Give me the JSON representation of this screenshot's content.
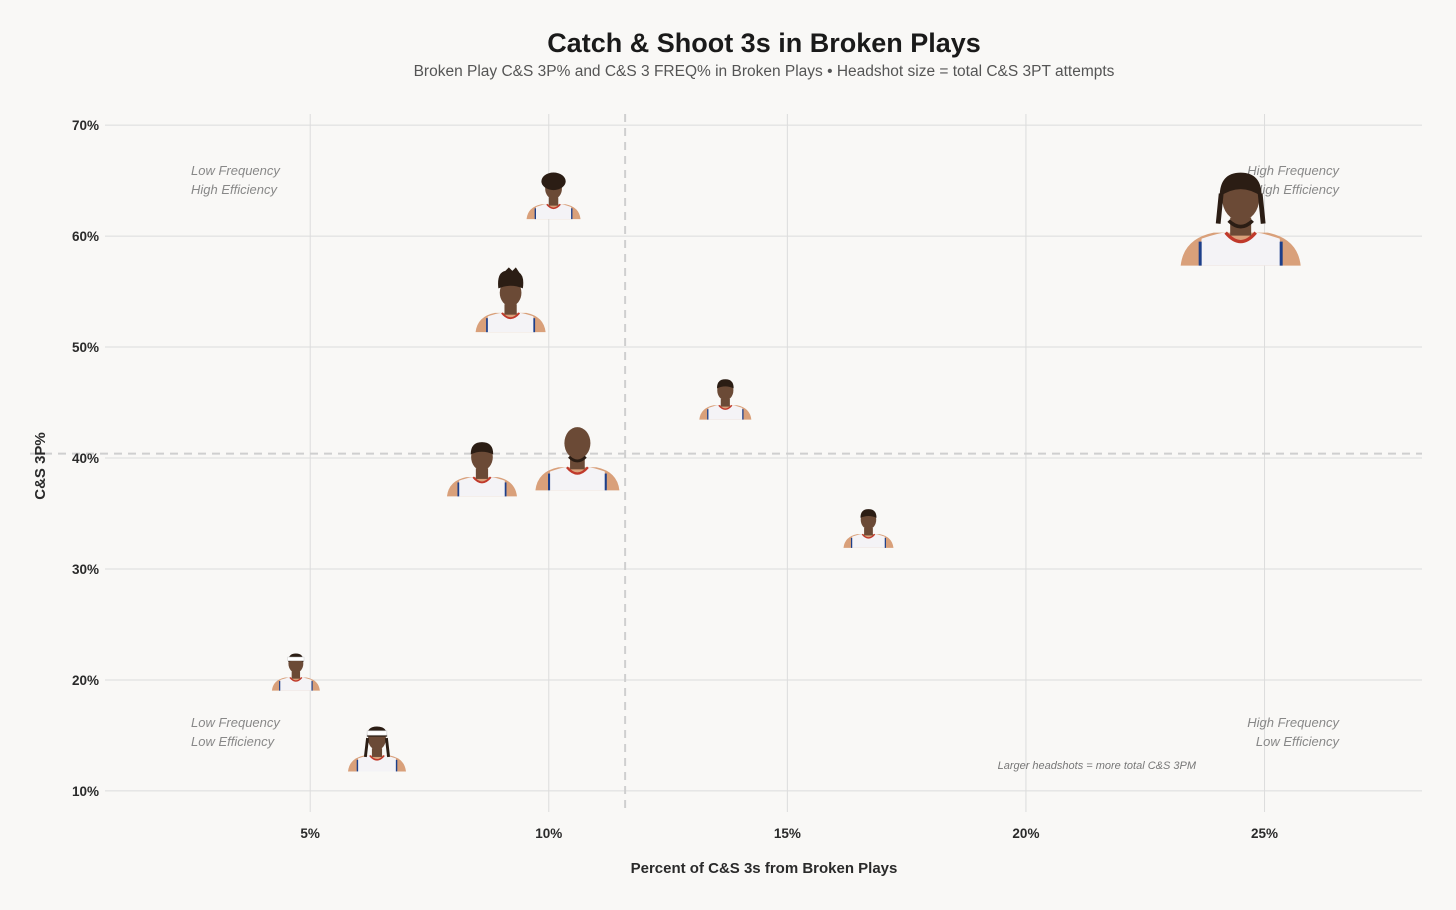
{
  "chart_data": {
    "type": "scatter",
    "title": "Catch & Shoot 3s in Broken Plays",
    "subtitle": "Broken Play C&S 3P% and C&S 3 FREQ% in Broken Plays • Headshot size = total C&S 3PT attempts",
    "xlabel": "Percent of C&S 3s from Broken Plays",
    "ylabel": "C&S 3P%",
    "xlim": [
      0.7,
      28.3
    ],
    "ylim": [
      8.1,
      71
    ],
    "x_ticks": [
      "5%",
      "10%",
      "15%",
      "20%",
      "25%"
    ],
    "x_tick_values": [
      5,
      10,
      15,
      20,
      25
    ],
    "y_ticks": [
      "10%",
      "20%",
      "30%",
      "40%",
      "50%",
      "60%",
      "70%"
    ],
    "y_tick_values": [
      10,
      20,
      30,
      40,
      50,
      60,
      70
    ],
    "grid": true,
    "reference_lines": {
      "x": 11.6,
      "y": 40.4
    },
    "quadrant_labels": {
      "top_left": [
        "Low Frequency",
        "High Efficiency"
      ],
      "top_right": [
        "High Frequency",
        "High Efficiency"
      ],
      "bottom_left": [
        "Low Frequency",
        "Low Efficiency"
      ],
      "bottom_right": [
        "High Frequency",
        "Low Efficiency"
      ]
    },
    "note": "Larger headshots = more total C&S 3PM",
    "points": [
      {
        "x": 24.5,
        "y": 59.5,
        "size": 3.0,
        "hair": "braids",
        "headband": false,
        "jersey": "#f4f3f6"
      },
      {
        "x": 10.1,
        "y": 62.5,
        "size": 1.35,
        "hair": "curly",
        "headband": false,
        "jersey": "#f4f3f6"
      },
      {
        "x": 9.2,
        "y": 52.6,
        "size": 1.75,
        "hair": "twists",
        "headband": false,
        "jersey": "#f4f3f6"
      },
      {
        "x": 13.7,
        "y": 44.4,
        "size": 1.3,
        "hair": "short",
        "headband": false,
        "jersey": "#f4f3f6"
      },
      {
        "x": 10.6,
        "y": 38.6,
        "size": 2.1,
        "hair": "bald",
        "headband": false,
        "jersey": "#f4f3f6"
      },
      {
        "x": 8.6,
        "y": 37.8,
        "size": 1.75,
        "hair": "short",
        "headband": false,
        "jersey": "#f4f3f6"
      },
      {
        "x": 16.7,
        "y": 32.8,
        "size": 1.25,
        "hair": "short",
        "headband": false,
        "jersey": "#f4f3f6"
      },
      {
        "x": 4.7,
        "y": 19.9,
        "size": 1.2,
        "hair": "short",
        "headband": true,
        "jersey": "#f4f3f6"
      },
      {
        "x": 6.4,
        "y": 12.8,
        "size": 1.45,
        "hair": "dreads",
        "headband": true,
        "jersey": "#f4f3f6"
      }
    ],
    "colors": {
      "grid": "#dcdcdc",
      "reference": "#cfcfcf",
      "skin": "#6b4a36",
      "skin_light": "#d9a07a",
      "hair": "#2b1d14",
      "trim_red": "#c0392b",
      "trim_blue": "#1d3f8a",
      "headband": "#ffffff"
    }
  }
}
